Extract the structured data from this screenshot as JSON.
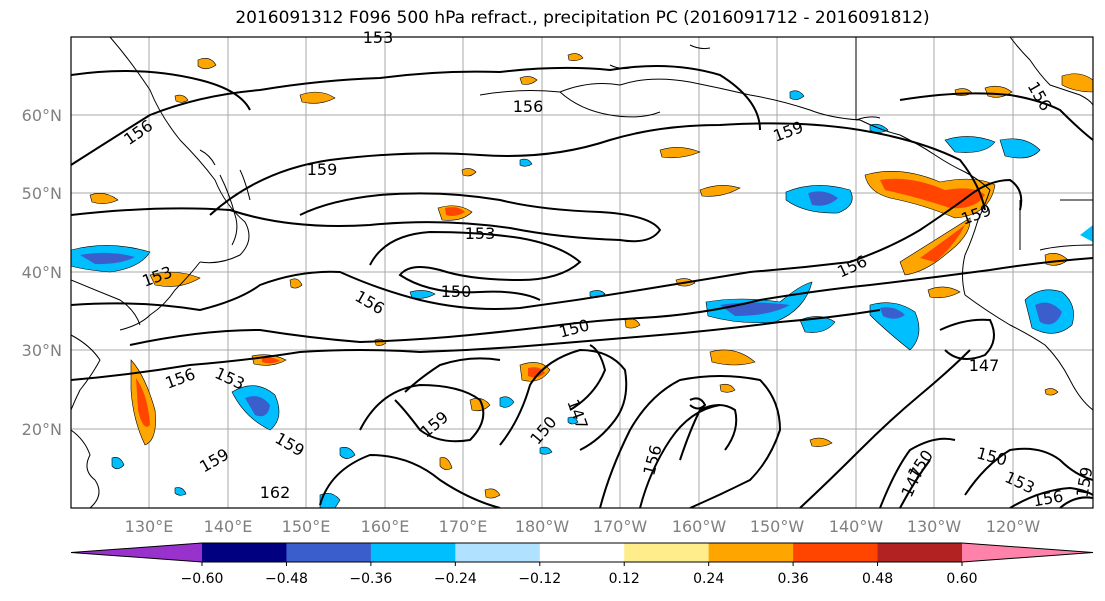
{
  "title": "2016091312 F096 500 hPa refract., precipitation PC (2016091712 - 2016091812)",
  "lat_labels": [
    "60°N",
    "50°N",
    "40°N",
    "30°N",
    "20°N"
  ],
  "lon_labels": [
    "130°E",
    "140°E",
    "150°E",
    "160°E",
    "170°E",
    "180°W",
    "170°W",
    "160°W",
    "150°W",
    "140°W",
    "130°W",
    "120°W"
  ],
  "colorbar": {
    "colors": [
      "#9932cc",
      "#000080",
      "#3a5fcd",
      "#00bfff",
      "#b0e2ff",
      "#ffffff",
      "#ffec8b",
      "#ffa500",
      "#ff4500",
      "#b22222",
      "#ff82ab"
    ],
    "tick_labels": [
      "−0.60",
      "−0.48",
      "−0.36",
      "−0.24",
      "−0.12",
      "0.12",
      "0.24",
      "0.36",
      "0.48",
      "0.60"
    ]
  },
  "contour_labels": [
    "153",
    "156",
    "156",
    "159",
    "156",
    "159",
    "153",
    "153",
    "156",
    "150",
    "150",
    "156",
    "156",
    "153",
    "159",
    "162",
    "159",
    "159",
    "150",
    "147",
    "156",
    "147",
    "150",
    "147",
    "150",
    "153",
    "156",
    "159",
    "156",
    "159",
    "156"
  ]
}
